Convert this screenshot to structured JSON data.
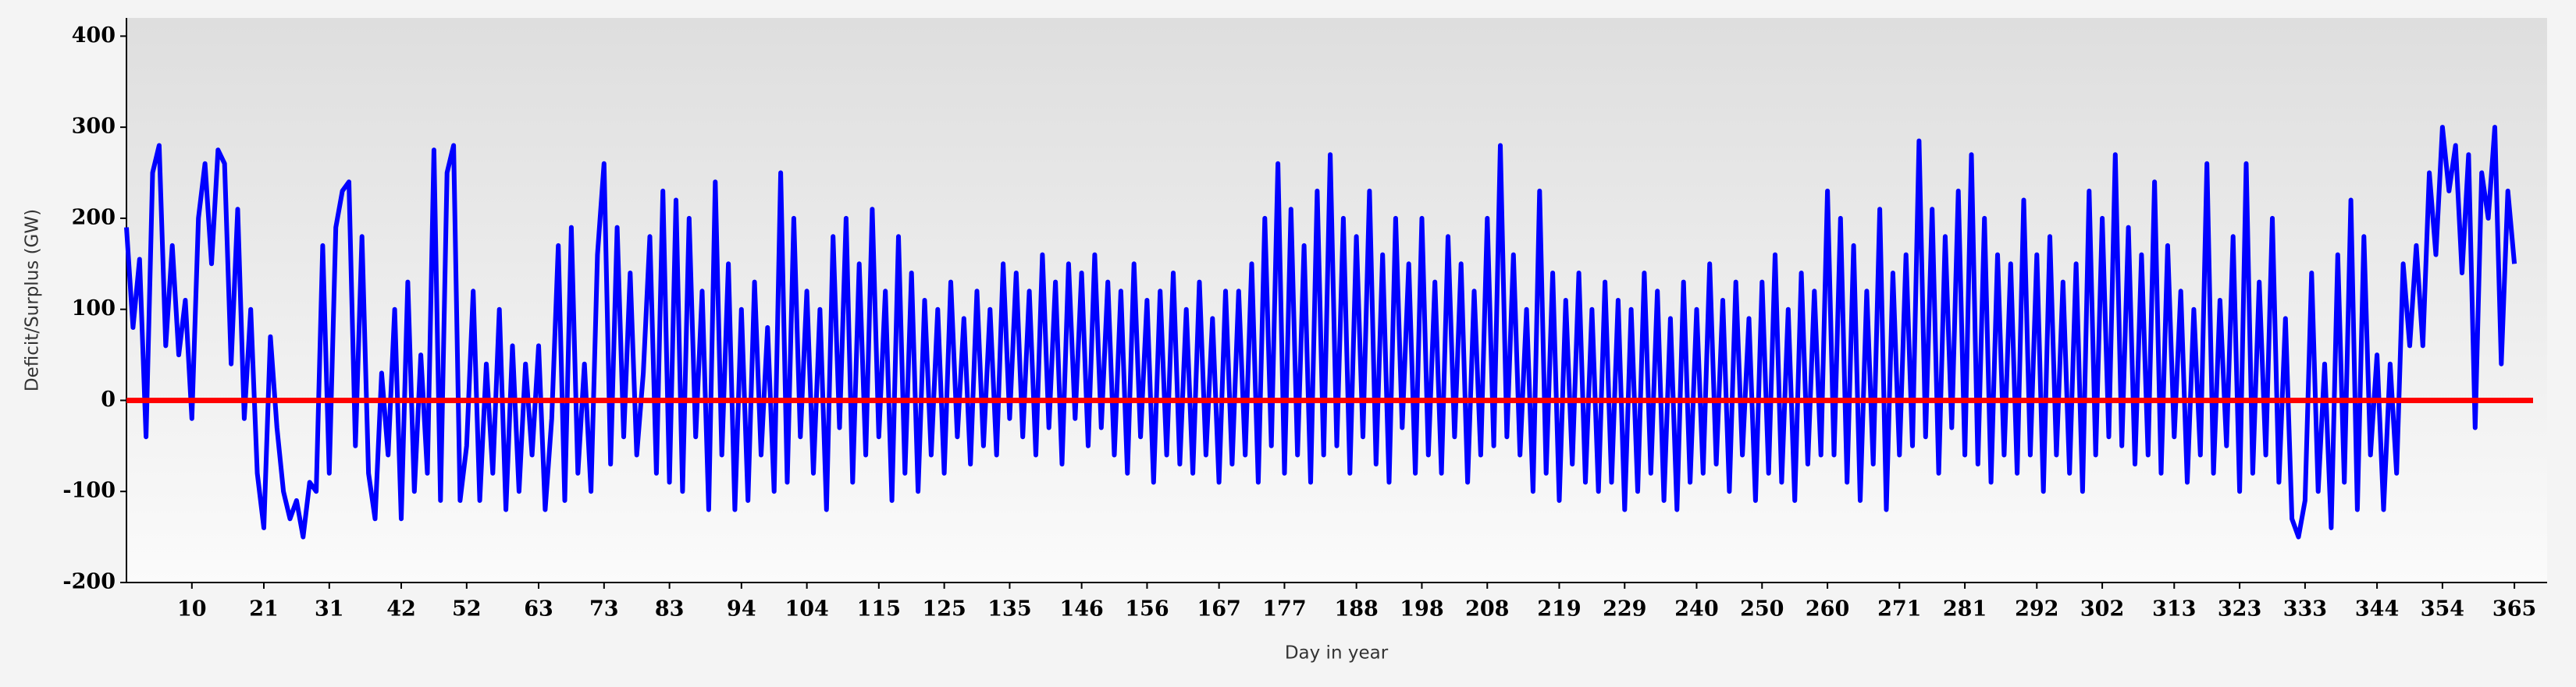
{
  "chart_data": {
    "type": "line",
    "xlabel": "Day in year",
    "ylabel": "Deficit/Surplus (GW)",
    "xlim": [
      0,
      370
    ],
    "xticks": [
      10,
      21,
      31,
      42,
      52,
      63,
      73,
      83,
      94,
      104,
      115,
      125,
      135,
      146,
      156,
      167,
      177,
      188,
      198,
      208,
      219,
      229,
      240,
      250,
      260,
      271,
      281,
      292,
      302,
      313,
      323,
      333,
      344,
      354,
      365
    ],
    "ylim": [
      -200,
      420
    ],
    "yticks": [
      -200,
      -100,
      0,
      100,
      200,
      300,
      400
    ],
    "color": "#0000ff",
    "reference_line": {
      "value": 0,
      "color": "#ff0000"
    },
    "x": [
      0,
      1,
      2,
      3,
      4,
      5,
      6,
      7,
      8,
      9,
      10,
      11,
      12,
      13,
      14,
      15,
      16,
      17,
      18,
      19,
      20,
      21,
      22,
      23,
      24,
      25,
      26,
      27,
      28,
      29,
      30,
      31,
      32,
      33,
      34,
      35,
      36,
      37,
      38,
      39,
      40,
      41,
      42,
      43,
      44,
      45,
      46,
      47,
      48,
      49,
      50,
      51,
      52,
      53,
      54,
      55,
      56,
      57,
      58,
      59,
      60,
      61,
      62,
      63,
      64,
      65,
      66,
      67,
      68,
      69,
      70,
      71,
      72,
      73,
      74,
      75,
      76,
      77,
      78,
      79,
      80,
      81,
      82,
      83,
      84,
      85,
      86,
      87,
      88,
      89,
      90,
      91,
      92,
      93,
      94,
      95,
      96,
      97,
      98,
      99,
      100,
      101,
      102,
      103,
      104,
      105,
      106,
      107,
      108,
      109,
      110,
      111,
      112,
      113,
      114,
      115,
      116,
      117,
      118,
      119,
      120,
      121,
      122,
      123,
      124,
      125,
      126,
      127,
      128,
      129,
      130,
      131,
      132,
      133,
      134,
      135,
      136,
      137,
      138,
      139,
      140,
      141,
      142,
      143,
      144,
      145,
      146,
      147,
      148,
      149,
      150,
      151,
      152,
      153,
      154,
      155,
      156,
      157,
      158,
      159,
      160,
      161,
      162,
      163,
      164,
      165,
      166,
      167,
      168,
      169,
      170,
      171,
      172,
      173,
      174,
      175,
      176,
      177,
      178,
      179,
      180,
      181,
      182,
      183,
      184,
      185,
      186,
      187,
      188,
      189,
      190,
      191,
      192,
      193,
      194,
      195,
      196,
      197,
      198,
      199,
      200,
      201,
      202,
      203,
      204,
      205,
      206,
      207,
      208,
      209,
      210,
      211,
      212,
      213,
      214,
      215,
      216,
      217,
      218,
      219,
      220,
      221,
      222,
      223,
      224,
      225,
      226,
      227,
      228,
      229,
      230,
      231,
      232,
      233,
      234,
      235,
      236,
      237,
      238,
      239,
      240,
      241,
      242,
      243,
      244,
      245,
      246,
      247,
      248,
      249,
      250,
      251,
      252,
      253,
      254,
      255,
      256,
      257,
      258,
      259,
      260,
      261,
      262,
      263,
      264,
      265,
      266,
      267,
      268,
      269,
      270,
      271,
      272,
      273,
      274,
      275,
      276,
      277,
      278,
      279,
      280,
      281,
      282,
      283,
      284,
      285,
      286,
      287,
      288,
      289,
      290,
      291,
      292,
      293,
      294,
      295,
      296,
      297,
      298,
      299,
      300,
      301,
      302,
      303,
      304,
      305,
      306,
      307,
      308,
      309,
      310,
      311,
      312,
      313,
      314,
      315,
      316,
      317,
      318,
      319,
      320,
      321,
      322,
      323,
      324,
      325,
      326,
      327,
      328,
      329,
      330,
      331,
      332,
      333,
      334,
      335,
      336,
      337,
      338,
      339,
      340,
      341,
      342,
      343,
      344,
      345,
      346,
      347,
      348,
      349,
      350,
      351,
      352,
      353,
      354,
      355,
      356,
      357,
      358,
      359,
      360,
      361,
      362,
      363,
      364,
      365
    ],
    "values": [
      190,
      80,
      155,
      -40,
      250,
      280,
      60,
      170,
      50,
      110,
      -20,
      200,
      260,
      150,
      275,
      260,
      40,
      210,
      -20,
      100,
      -80,
      -140,
      70,
      -30,
      -100,
      -130,
      -110,
      -150,
      -90,
      -100,
      170,
      -80,
      190,
      230,
      240,
      -50,
      180,
      -80,
      -130,
      30,
      -60,
      100,
      -130,
      130,
      -100,
      50,
      -80,
      275,
      -110,
      250,
      280,
      -110,
      -50,
      120,
      -110,
      40,
      -80,
      100,
      -120,
      60,
      -100,
      40,
      -60,
      60,
      -120,
      -20,
      170,
      -110,
      190,
      -80,
      40,
      -100,
      160,
      260,
      -70,
      190,
      -40,
      140,
      -60,
      30,
      180,
      -80,
      230,
      -90,
      220,
      -100,
      200,
      -40,
      120,
      -120,
      240,
      -60,
      150,
      -120,
      100,
      -110,
      130,
      -60,
      80,
      -100,
      250,
      -90,
      200,
      -40,
      120,
      -80,
      100,
      -120,
      180,
      -30,
      200,
      -90,
      150,
      -60,
      210,
      -40,
      120,
      -110,
      180,
      -80,
      140,
      -100,
      110,
      -60,
      100,
      -80,
      130,
      -40,
      90,
      -70,
      120,
      -50,
      100,
      -60,
      150,
      -20,
      140,
      -40,
      120,
      -60,
      160,
      -30,
      130,
      -70,
      150,
      -20,
      140,
      -50,
      160,
      -30,
      130,
      -60,
      120,
      -80,
      150,
      -40,
      110,
      -90,
      120,
      -60,
      140,
      -70,
      100,
      -80,
      130,
      -60,
      90,
      -90,
      120,
      -70,
      120,
      -60,
      150,
      -90,
      200,
      -50,
      260,
      -80,
      210,
      -60,
      170,
      -90,
      230,
      -60,
      270,
      -50,
      200,
      -80,
      180,
      -40,
      230,
      -70,
      160,
      -90,
      200,
      -30,
      150,
      -80,
      200,
      -60,
      130,
      -80,
      180,
      -40,
      150,
      -90,
      120,
      -60,
      200,
      -50,
      280,
      -40,
      160,
      -60,
      100,
      -100,
      230,
      -80,
      140,
      -110,
      110,
      -70,
      140,
      -90,
      100,
      -100,
      130,
      -90,
      110,
      -120,
      100,
      -100,
      140,
      -80,
      120,
      -110,
      90,
      -120,
      130,
      -90,
      100,
      -80,
      150,
      -70,
      110,
      -100,
      130,
      -60,
      90,
      -110,
      130,
      -80,
      160,
      -90,
      100,
      -110,
      140,
      -70,
      120,
      -60,
      230,
      -60,
      200,
      -90,
      170,
      -110,
      120,
      -70,
      210,
      -120,
      140,
      -60,
      160,
      -50,
      285,
      -40,
      210,
      -80,
      180,
      -30,
      230,
      -60,
      270,
      -70,
      200,
      -90,
      160,
      -60,
      150,
      -80,
      220,
      -60,
      160,
      -100,
      180,
      -60,
      130,
      -80,
      150,
      -100,
      230,
      -60,
      200,
      -40,
      270,
      -50,
      190,
      -70,
      160,
      -60,
      240,
      -80,
      170,
      -40,
      120,
      -90,
      100,
      -60,
      260,
      -80,
      110,
      -50,
      180,
      -100,
      260,
      -80,
      130,
      -60,
      200,
      -90,
      90,
      -130,
      -150,
      -110,
      140,
      -100,
      40,
      -140,
      160,
      -90,
      220,
      -120,
      180,
      -60,
      50,
      -120,
      40,
      -80,
      150,
      60,
      170,
      60,
      250,
      160,
      300,
      230,
      280,
      140,
      270,
      -30,
      250,
      200,
      300,
      40,
      230,
      150
    ]
  }
}
